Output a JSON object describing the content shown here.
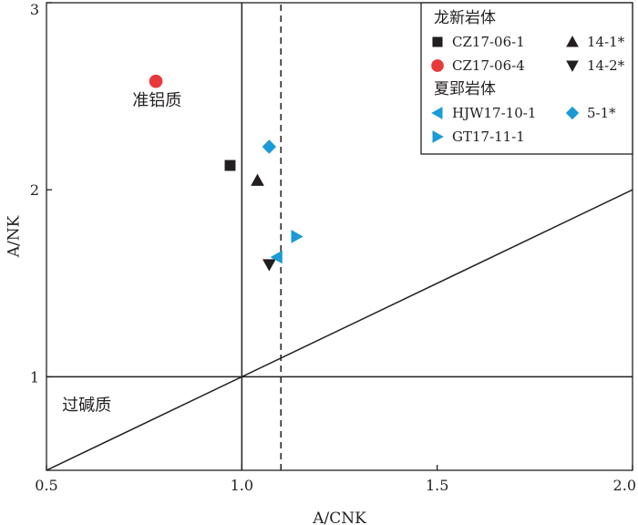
{
  "chart_data": {
    "type": "scatter",
    "xlabel": "A/CNK",
    "ylabel": "A/NK",
    "xlim": [
      0.5,
      2.0
    ],
    "ylim": [
      0.5,
      3.0
    ],
    "x_ticks": [
      {
        "value": 0.5,
        "label": "0.5"
      },
      {
        "value": 1.0,
        "label": "1.0"
      },
      {
        "value": 1.5,
        "label": "1.5"
      },
      {
        "value": 2.0,
        "label": "2.0"
      }
    ],
    "y_ticks": [
      {
        "value": 1,
        "label": "1"
      },
      {
        "value": 2,
        "label": "2"
      },
      {
        "value": 3,
        "label": "3"
      }
    ],
    "grid": false,
    "legend_position": "top-right",
    "field_labels": [
      {
        "text": "准铝质",
        "x": 0.72,
        "y": 2.45
      },
      {
        "text": "过碱质",
        "x": 0.54,
        "y": 0.82
      }
    ],
    "boundary_lines": [
      {
        "kind": "solid",
        "points": [
          [
            1.0,
            0.5
          ],
          [
            1.0,
            3.0
          ]
        ]
      },
      {
        "kind": "dashed",
        "points": [
          [
            1.1,
            0.5
          ],
          [
            1.1,
            3.0
          ]
        ]
      },
      {
        "kind": "solid",
        "points": [
          [
            0.5,
            1.0
          ],
          [
            2.0,
            1.0
          ]
        ]
      },
      {
        "kind": "solid",
        "points": [
          [
            0.5,
            0.5
          ],
          [
            2.0,
            2.0
          ]
        ]
      }
    ],
    "legend_groups": [
      {
        "title": "龙新岩体",
        "entries": [
          "CZ17-06-1",
          "14-1*",
          "CZ17-06-4",
          "14-2*"
        ]
      },
      {
        "title": "夏郢岩体",
        "entries": [
          "HJW17-10-1",
          "5-1*",
          "GT17-11-1"
        ]
      }
    ],
    "series": [
      {
        "name": "CZ17-06-1",
        "marker": "square",
        "color": "#231f20",
        "points": [
          [
            0.97,
            2.13
          ]
        ]
      },
      {
        "name": "CZ17-06-4",
        "marker": "circle",
        "color": "#e8393a",
        "points": [
          [
            0.78,
            2.58
          ]
        ]
      },
      {
        "name": "14-1*",
        "marker": "triangle-up",
        "color": "#231f20",
        "points": [
          [
            1.04,
            2.05
          ]
        ]
      },
      {
        "name": "14-2*",
        "marker": "triangle-down",
        "color": "#231f20",
        "points": [
          [
            1.07,
            1.6
          ]
        ]
      },
      {
        "name": "HJW17-10-1",
        "marker": "triangle-left",
        "color": "#1a9ad6",
        "points": [
          [
            1.09,
            1.64
          ]
        ]
      },
      {
        "name": "5-1*",
        "marker": "diamond",
        "color": "#1a9ad6",
        "points": [
          [
            1.07,
            2.23
          ]
        ]
      },
      {
        "name": "GT17-11-1",
        "marker": "triangle-right",
        "color": "#1a9ad6",
        "points": [
          [
            1.14,
            1.75
          ]
        ]
      }
    ]
  }
}
